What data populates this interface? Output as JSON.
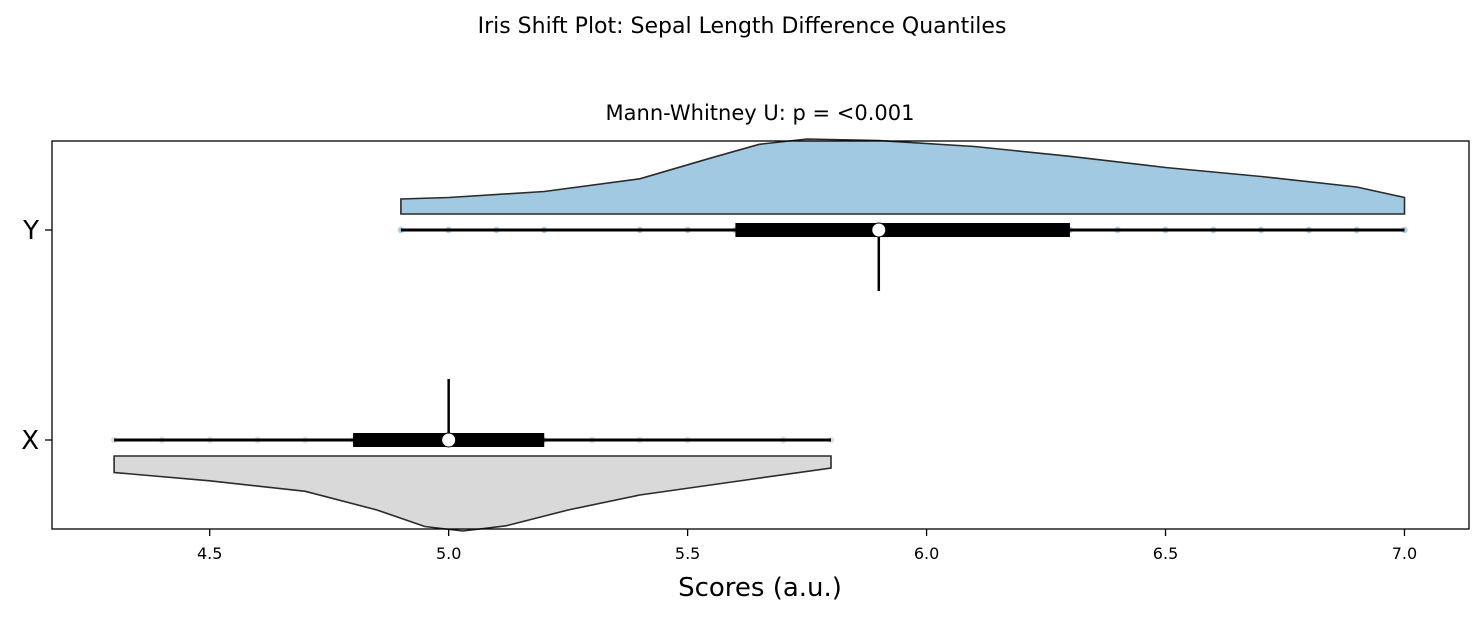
{
  "chart_data": {
    "type": "violin",
    "suptitle": "Iris Shift Plot: Sepal Length Difference Quantiles",
    "title": "Mann-Whitney U: p = <0.001",
    "xlabel": "Scores (a.u.)",
    "ylabel": "",
    "xlim": [
      4.17,
      7.135
    ],
    "xticks": [
      4.5,
      5.0,
      5.5,
      6.0,
      6.5,
      7.0
    ],
    "xtick_labels": [
      "4.5",
      "5.0",
      "5.5",
      "6.0",
      "6.5",
      "7.0"
    ],
    "groups": [
      {
        "label": "Y",
        "color": "#a1c9e2",
        "side": "top",
        "min": 4.9,
        "max": 7.0,
        "q1": 5.6,
        "median": 5.9,
        "q3": 6.3,
        "points": [
          4.9,
          5.0,
          5.1,
          5.2,
          5.4,
          5.5,
          5.6,
          5.7,
          5.8,
          5.9,
          6.0,
          6.1,
          6.2,
          6.3,
          6.4,
          6.5,
          6.6,
          6.7,
          6.8,
          6.9,
          7.0
        ],
        "density": [
          [
            4.9,
            0.2
          ],
          [
            5.0,
            0.22
          ],
          [
            5.2,
            0.3
          ],
          [
            5.4,
            0.47
          ],
          [
            5.55,
            0.75
          ],
          [
            5.65,
            0.93
          ],
          [
            5.75,
            1.0
          ],
          [
            5.9,
            0.98
          ],
          [
            6.1,
            0.9
          ],
          [
            6.3,
            0.77
          ],
          [
            6.5,
            0.62
          ],
          [
            6.7,
            0.5
          ],
          [
            6.9,
            0.36
          ],
          [
            7.0,
            0.22
          ]
        ]
      },
      {
        "label": "X",
        "color": "#d9d9d9",
        "side": "bottom",
        "min": 4.3,
        "max": 5.8,
        "q1": 4.8,
        "median": 5.0,
        "q3": 5.2,
        "points": [
          4.3,
          4.4,
          4.5,
          4.6,
          4.7,
          4.8,
          4.9,
          5.0,
          5.1,
          5.2,
          5.3,
          5.4,
          5.5,
          5.7,
          5.8
        ],
        "density": [
          [
            4.3,
            0.22
          ],
          [
            4.5,
            0.33
          ],
          [
            4.7,
            0.47
          ],
          [
            4.85,
            0.72
          ],
          [
            4.95,
            0.94
          ],
          [
            5.03,
            1.0
          ],
          [
            5.12,
            0.93
          ],
          [
            5.25,
            0.72
          ],
          [
            5.4,
            0.52
          ],
          [
            5.6,
            0.34
          ],
          [
            5.8,
            0.16
          ]
        ]
      }
    ]
  }
}
